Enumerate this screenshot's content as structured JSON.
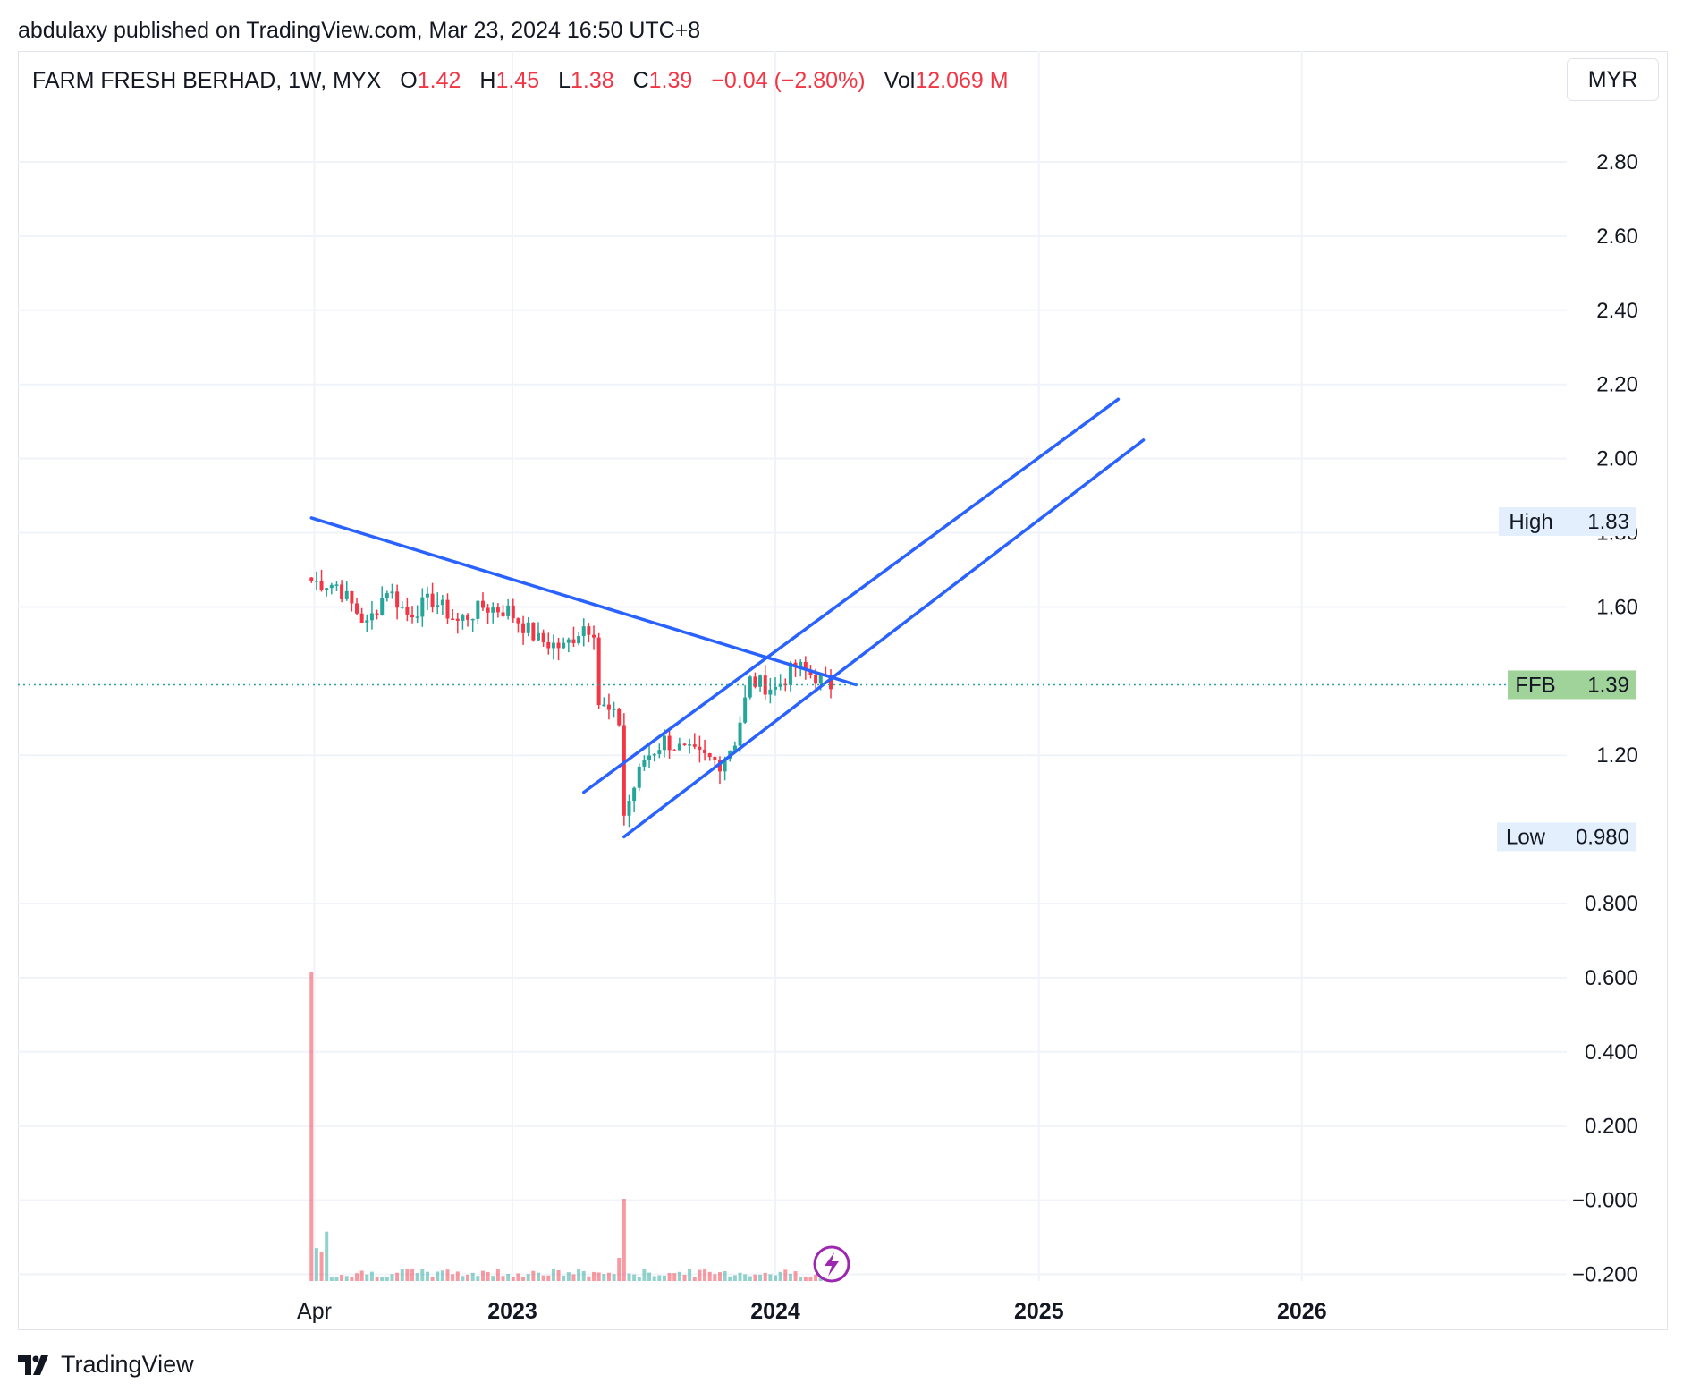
{
  "publisher": "abdulaxy published on TradingView.com, Mar 23, 2024 16:50 UTC+8",
  "legend": {
    "symbol": "FARM FRESH BERHAD, 1W, MYX",
    "o_label": "O",
    "o_value": "1.42",
    "h_label": "H",
    "h_value": "1.45",
    "l_label": "L",
    "l_value": "1.38",
    "c_label": "C",
    "c_value": "1.39",
    "change": "−0.04 (−2.80%)",
    "vol_label": "Vol",
    "vol_value": "12.069 M"
  },
  "currency_button": "MYR",
  "brand": "TradingView",
  "colors": {
    "up": "#26a69a",
    "down": "#f23645",
    "line": "#2962ff",
    "grid": "#f0f3fa",
    "badge_green": "#9fd39a",
    "badge_blue": "#e3effd"
  },
  "chart_data": {
    "type": "candlestick",
    "symbol": "FFB",
    "interval": "1W",
    "price_axis": {
      "ticks": [
        2.8,
        2.6,
        2.4,
        2.2,
        2.0,
        1.8,
        1.6,
        1.2,
        0.8,
        0.6,
        0.4,
        0.2,
        -0.0,
        -0.2
      ],
      "tick_labels": [
        "2.80",
        "2.60",
        "2.40",
        "2.20",
        "2.00",
        "1.80",
        "1.60",
        "1.20",
        "0.800",
        "0.600",
        "0.400",
        "0.200",
        "−0.000",
        "−0.200"
      ]
    },
    "time_axis": {
      "ticks": [
        "2022-04",
        "2023-01",
        "2024-01",
        "2025-01",
        "2026-01"
      ],
      "tick_labels": [
        "Apr",
        "2023",
        "2024",
        "2025",
        "2026"
      ],
      "bold": [
        false,
        true,
        true,
        true,
        true
      ]
    },
    "markers": {
      "high": {
        "label": "High",
        "value": "1.83",
        "price": 1.83
      },
      "low": {
        "label": "Low",
        "value": "0.980",
        "price": 0.98
      },
      "last": {
        "label": "FFB",
        "value": "1.39",
        "price": 1.39
      }
    },
    "ohlc_waypoints": [
      {
        "date": "2022-03-28",
        "close": 1.67
      },
      {
        "date": "2022-05-02",
        "close": 1.66
      },
      {
        "date": "2022-06-13",
        "close": 1.55
      },
      {
        "date": "2022-07-11",
        "close": 1.65
      },
      {
        "date": "2022-08-08",
        "close": 1.58
      },
      {
        "date": "2022-09-12",
        "close": 1.62
      },
      {
        "date": "2022-10-17",
        "close": 1.56
      },
      {
        "date": "2022-11-21",
        "close": 1.6
      },
      {
        "date": "2022-12-26",
        "close": 1.59
      },
      {
        "date": "2023-02-06",
        "close": 1.51
      },
      {
        "date": "2023-03-13",
        "close": 1.49
      },
      {
        "date": "2023-04-10",
        "close": 1.55
      },
      {
        "date": "2023-04-24",
        "close": 1.54
      },
      {
        "date": "2023-05-01",
        "close": 1.34
      },
      {
        "date": "2023-05-29",
        "close": 1.29
      },
      {
        "date": "2023-06-05",
        "close": 1.04
      },
      {
        "date": "2023-07-03",
        "close": 1.19
      },
      {
        "date": "2023-07-31",
        "close": 1.24
      },
      {
        "date": "2023-08-28",
        "close": 1.21
      },
      {
        "date": "2023-10-16",
        "close": 1.18
      },
      {
        "date": "2023-11-06",
        "close": 1.24
      },
      {
        "date": "2023-11-27",
        "close": 1.4
      },
      {
        "date": "2024-01-01",
        "close": 1.38
      },
      {
        "date": "2024-01-29",
        "close": 1.44
      },
      {
        "date": "2024-03-18",
        "close": 1.39
      }
    ],
    "volume_note": "Volume histogram in lower pane",
    "trendlines": [
      {
        "from": {
          "date": "2022-03-28",
          "price": 1.84
        },
        "to": {
          "date": "2024-04-22",
          "price": 1.39
        }
      },
      {
        "from": {
          "date": "2023-04-10",
          "price": 1.1
        },
        "to": {
          "date": "2025-04-21",
          "price": 2.16
        }
      },
      {
        "from": {
          "date": "2023-06-05",
          "price": 0.98
        },
        "to": {
          "date": "2025-05-26",
          "price": 2.05
        }
      }
    ]
  }
}
